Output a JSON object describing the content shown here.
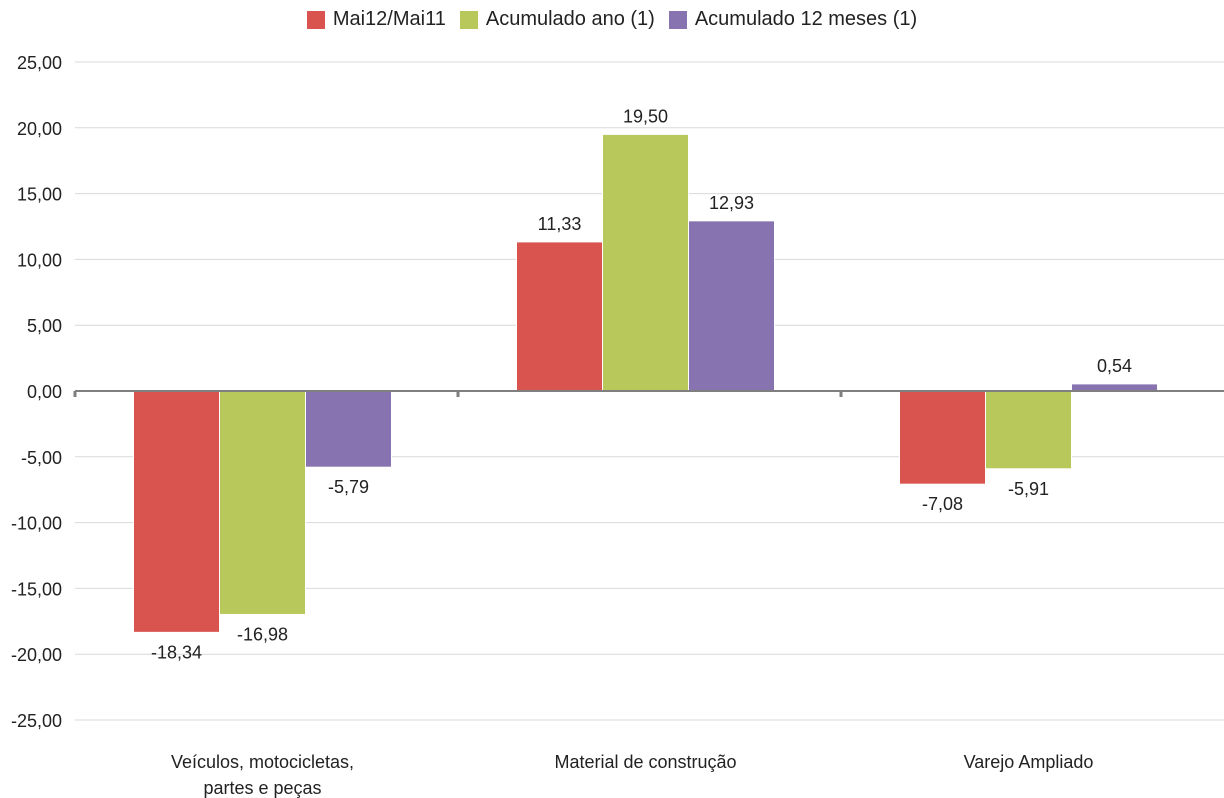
{
  "chart_data": {
    "type": "bar",
    "categories": [
      "Veículos, motocicletas, partes e peças",
      "Material de construção",
      "Varejo Ampliado"
    ],
    "category_lines": [
      [
        "Veículos, motocicletas,",
        "partes e peças"
      ],
      [
        "Material de construção"
      ],
      [
        "Varejo Ampliado"
      ]
    ],
    "series": [
      {
        "name": "Mai12/Mai11",
        "color": "#d9534f",
        "values": [
          -18.34,
          11.33,
          -7.08
        ],
        "labels": [
          "-18,34",
          "11,33",
          "-7,08"
        ]
      },
      {
        "name": "Acumulado ano (1)",
        "color": "#b8c85a",
        "values": [
          -16.98,
          19.5,
          -5.91
        ],
        "labels": [
          "-16,98",
          "19,50",
          "-5,91"
        ]
      },
      {
        "name": "Acumulado 12 meses (1)",
        "color": "#8673b0",
        "values": [
          -5.79,
          12.93,
          0.54
        ],
        "labels": [
          "-5,79",
          "12,93",
          "0,54"
        ]
      }
    ],
    "title": "",
    "xlabel": "",
    "ylabel": "",
    "ylim": [
      -25,
      25
    ],
    "yticks": [
      25,
      20,
      15,
      10,
      5,
      0,
      -5,
      -10,
      -15,
      -20,
      -25
    ],
    "ytick_labels": [
      "25,00",
      "20,00",
      "15,00",
      "10,00",
      "5,00",
      "0,00",
      "-5,00",
      "-10,00",
      "-15,00",
      "-20,00",
      "-25,00"
    ],
    "grid": true,
    "legend_position": "top"
  }
}
